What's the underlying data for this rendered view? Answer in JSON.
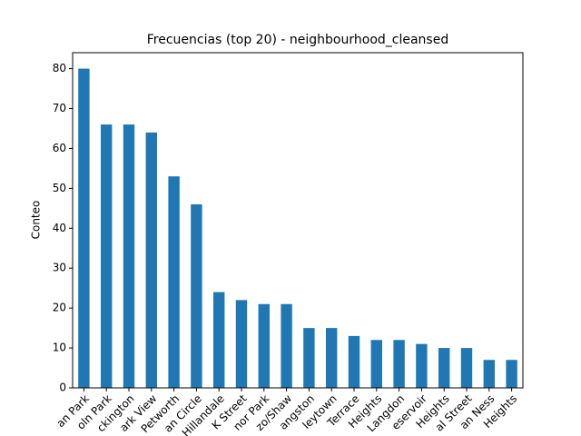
{
  "chart_data": {
    "type": "bar",
    "title": "Frecuencias (top 20) - neighbourhood_cleansed",
    "y_label": "Conteo",
    "categories": [
      "an Park",
      "oln Park",
      "ckington",
      "ark View",
      "Petworth",
      "an Circle",
      "Hillandale",
      "K Street",
      "nor Park",
      "zo/Shaw",
      "angston",
      "leytown",
      "Terrace",
      "Heights",
      "Langdon",
      "eservoir",
      "Heights",
      "al Street",
      "an Ness",
      "Heights"
    ],
    "values": [
      80,
      66,
      66,
      64,
      53,
      46,
      24,
      22,
      21,
      21,
      15,
      15,
      13,
      12,
      12,
      11,
      10,
      10,
      7,
      7
    ],
    "color": "#1f77b4",
    "ylim": [
      0,
      84
    ],
    "yticks": [
      0,
      10,
      20,
      30,
      40,
      50,
      60,
      70,
      80
    ],
    "grid": false
  }
}
